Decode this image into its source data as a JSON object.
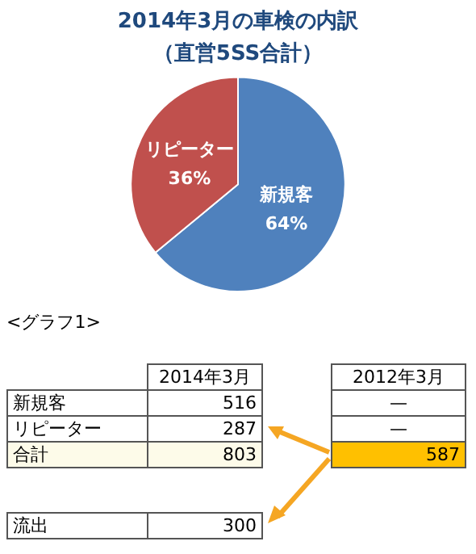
{
  "chart_data": {
    "type": "pie",
    "title": "2014年3月の車検の内訳",
    "subtitle": "（直営5SS合計）",
    "categories": [
      "新規客",
      "リピーター"
    ],
    "values": [
      64,
      36
    ],
    "colors": [
      "#4f81bd",
      "#c0504d"
    ],
    "value_labels": [
      "64%",
      "36%"
    ],
    "legend": false,
    "annotations": [
      "<グラフ1>",
      "2014年3月",
      "2012年3月",
      "新規客",
      "516",
      "—",
      "リピーター",
      "287",
      "—",
      "合計",
      "803",
      "587",
      "流出",
      "300"
    ]
  }
}
